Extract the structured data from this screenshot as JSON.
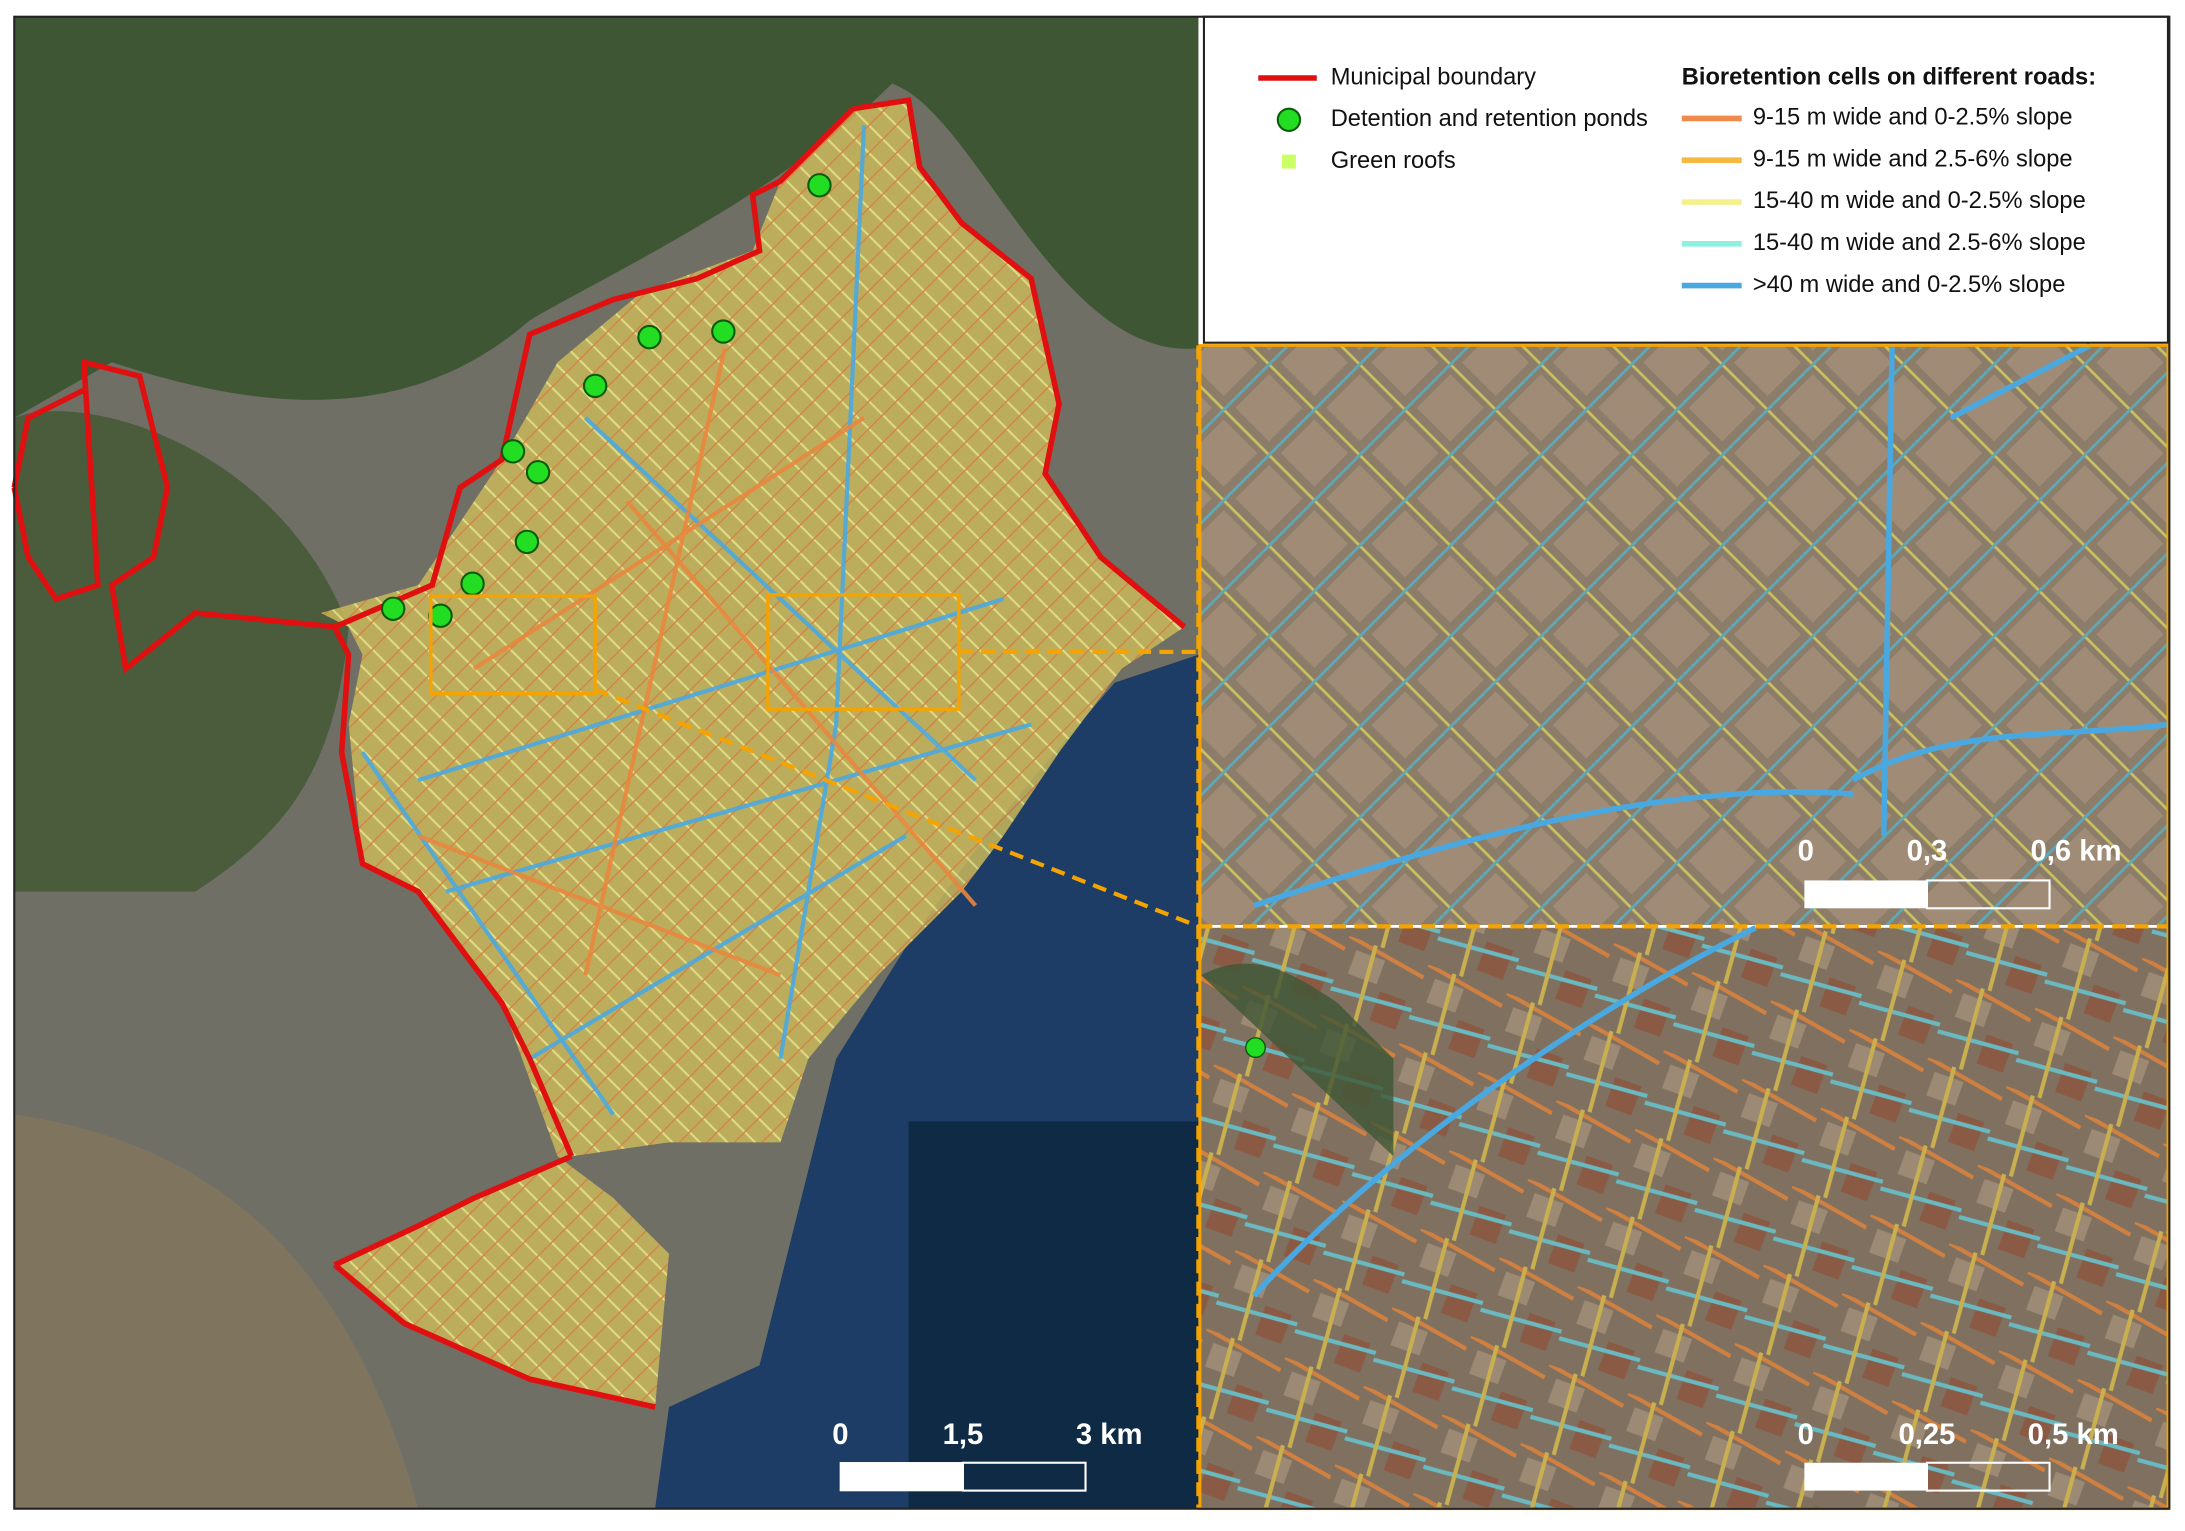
{
  "legend": {
    "items": [
      {
        "label": "Municipal boundary",
        "color": "#e01010"
      },
      {
        "label": "Detention and retention ponds",
        "color": "#22dd22"
      },
      {
        "label": "Green roofs",
        "color": "#ccff66"
      }
    ],
    "roads_title": "Bioretention cells on different roads:",
    "roads": [
      {
        "label": "9-15 m wide and 0-2.5% slope",
        "color": "#f08a4b"
      },
      {
        "label": "9-15 m wide and 2.5-6% slope",
        "color": "#f5b942"
      },
      {
        "label": "15-40 m wide and 0-2.5% slope",
        "color": "#f5f08a"
      },
      {
        "label": "15-40 m wide and 2.5-6% slope",
        "color": "#8ef0e0"
      },
      {
        "label": ">40 m wide and 0-2.5% slope",
        "color": "#4aa8e0"
      }
    ]
  },
  "main_map": {
    "scale_bar": [
      "0",
      "1,5",
      "3 km"
    ]
  },
  "inset_top": {
    "scale_bar": [
      "0",
      "0,3",
      "0,6 km"
    ]
  },
  "inset_bottom": {
    "scale_bar": [
      "0",
      "0,25",
      "0,5 km"
    ]
  }
}
